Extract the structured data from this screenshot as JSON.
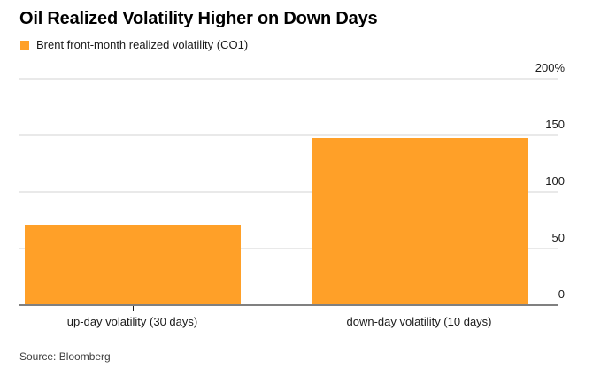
{
  "title": "Oil Realized Volatility Higher on Down Days",
  "legend": {
    "label": "Brent front-month realized volatility (CO1)",
    "swatch_color": "#FFA028"
  },
  "source": "Source: Bloomberg",
  "colors": {
    "bar": "#FFA028",
    "gridline": "#e9e9e9",
    "axis_line": "#808080",
    "tick": "#1a1a1a",
    "text": "#1a1a1a",
    "source_text": "#3d3d3d",
    "background": "#ffffff"
  },
  "chart_data": {
    "type": "bar",
    "title": "Oil Realized Volatility Higher on Down Days",
    "series_name": "Brent front-month realized volatility (CO1)",
    "categories": [
      "up-day volatility (30 days)",
      "down-day volatility (10 days)"
    ],
    "values": [
      70,
      147
    ],
    "unit": "%",
    "xlabel": "",
    "ylabel": "",
    "ylim": [
      0,
      200
    ],
    "y_ticks": [
      {
        "value": 0,
        "label": "0"
      },
      {
        "value": 50,
        "label": "50"
      },
      {
        "value": 100,
        "label": "100"
      },
      {
        "value": 150,
        "label": "150"
      },
      {
        "value": 200,
        "label": "200%"
      }
    ],
    "grid": true,
    "axis_side": "right",
    "legend_position": "top-left"
  }
}
